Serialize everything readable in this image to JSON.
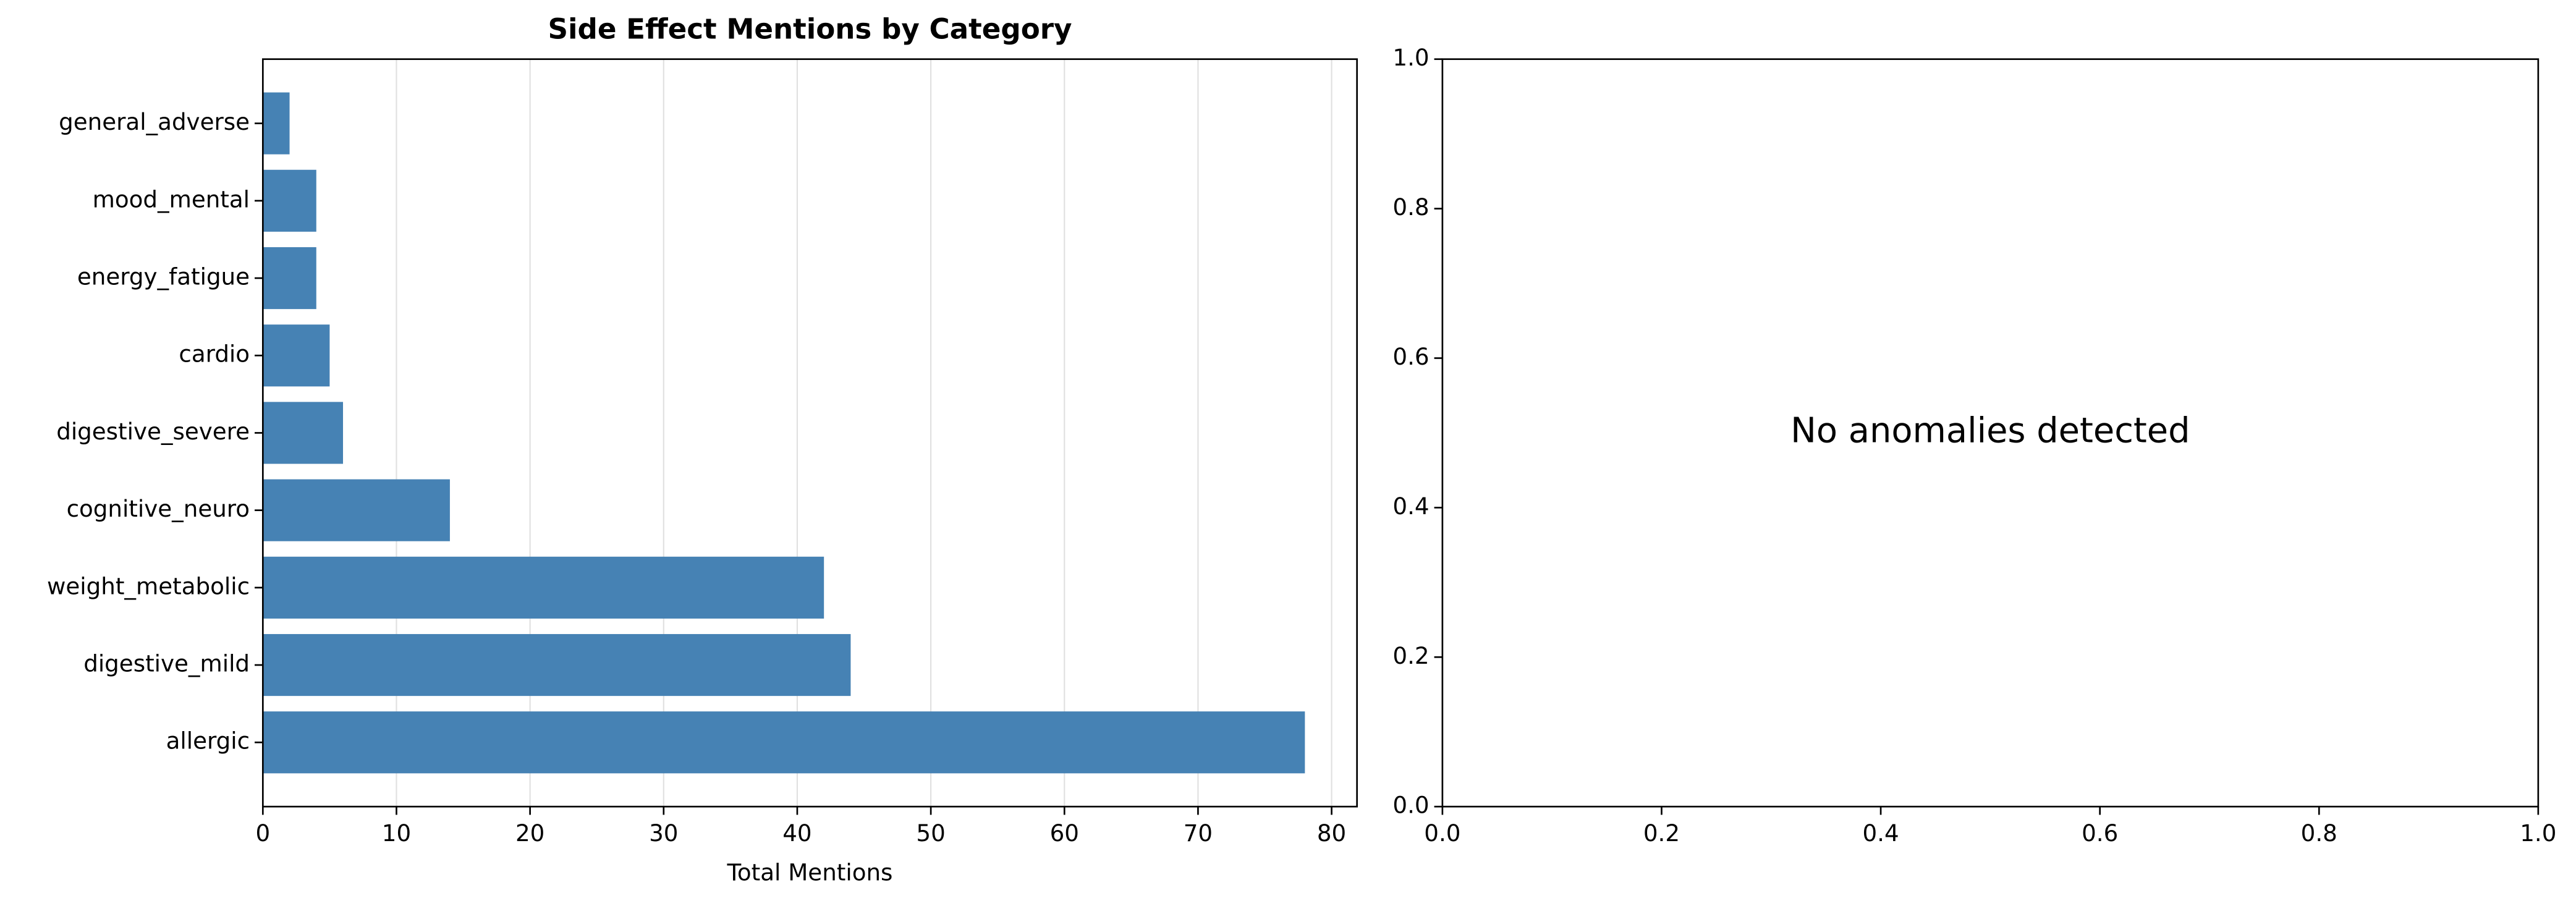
{
  "chart_data": [
    {
      "type": "bar",
      "orientation": "horizontal",
      "title": "Side Effect Mentions by Category",
      "xlabel": "Total Mentions",
      "categories": [
        "allergic",
        "digestive_mild",
        "weight_metabolic",
        "cognitive_neuro",
        "digestive_severe",
        "cardio",
        "energy_fatigue",
        "mood_mental",
        "general_adverse"
      ],
      "values": [
        78,
        44,
        42,
        14,
        6,
        5,
        4,
        4,
        2
      ],
      "color": "#4682b4",
      "xlim": [
        0,
        81.9
      ],
      "xticks": [
        0,
        10,
        20,
        30,
        40,
        50,
        60,
        70,
        80
      ],
      "grid": true
    },
    {
      "type": "annotation",
      "annotation": "No anomalies detected",
      "xlim": [
        0,
        1
      ],
      "ylim": [
        0,
        1
      ],
      "xticks": [
        {
          "value": 0,
          "label": "0.0"
        },
        {
          "value": 0.2,
          "label": "0.2"
        },
        {
          "value": 0.4,
          "label": "0.4"
        },
        {
          "value": 0.6,
          "label": "0.6"
        },
        {
          "value": 0.8,
          "label": "0.8"
        },
        {
          "value": 1,
          "label": "1.0"
        }
      ],
      "yticks": [
        {
          "value": 0,
          "label": "0.0"
        },
        {
          "value": 0.2,
          "label": "0.2"
        },
        {
          "value": 0.4,
          "label": "0.4"
        },
        {
          "value": 0.6,
          "label": "0.6"
        },
        {
          "value": 0.8,
          "label": "0.8"
        },
        {
          "value": 1,
          "label": "1.0"
        }
      ]
    }
  ]
}
